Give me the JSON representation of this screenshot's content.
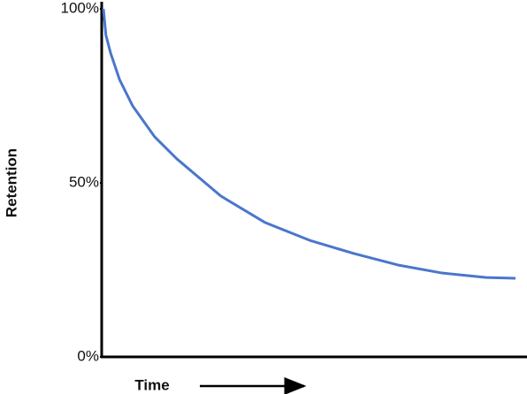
{
  "chart_data": {
    "type": "line",
    "y_label": "Retention",
    "x_label": "Time",
    "x": [
      0.4,
      1,
      2.1,
      4.2,
      7.3,
      12.5,
      17.7,
      28.1,
      38.5,
      49,
      59.4,
      69.8,
      80.2,
      90.6,
      97.5
    ],
    "values": [
      100,
      92.4,
      87.3,
      79.7,
      72.1,
      63.2,
      56.9,
      46.2,
      38.6,
      33.5,
      29.7,
      26.4,
      24.1,
      22.8,
      22.6
    ],
    "color": "#4a76cc",
    "xlim": [
      0,
      100
    ],
    "ylim": [
      0,
      100
    ],
    "yticks": [
      {
        "value": 0,
        "label": "0%"
      },
      {
        "value": 50,
        "label": "50%"
      },
      {
        "value": 100,
        "label": "100%"
      }
    ],
    "grid": false
  }
}
